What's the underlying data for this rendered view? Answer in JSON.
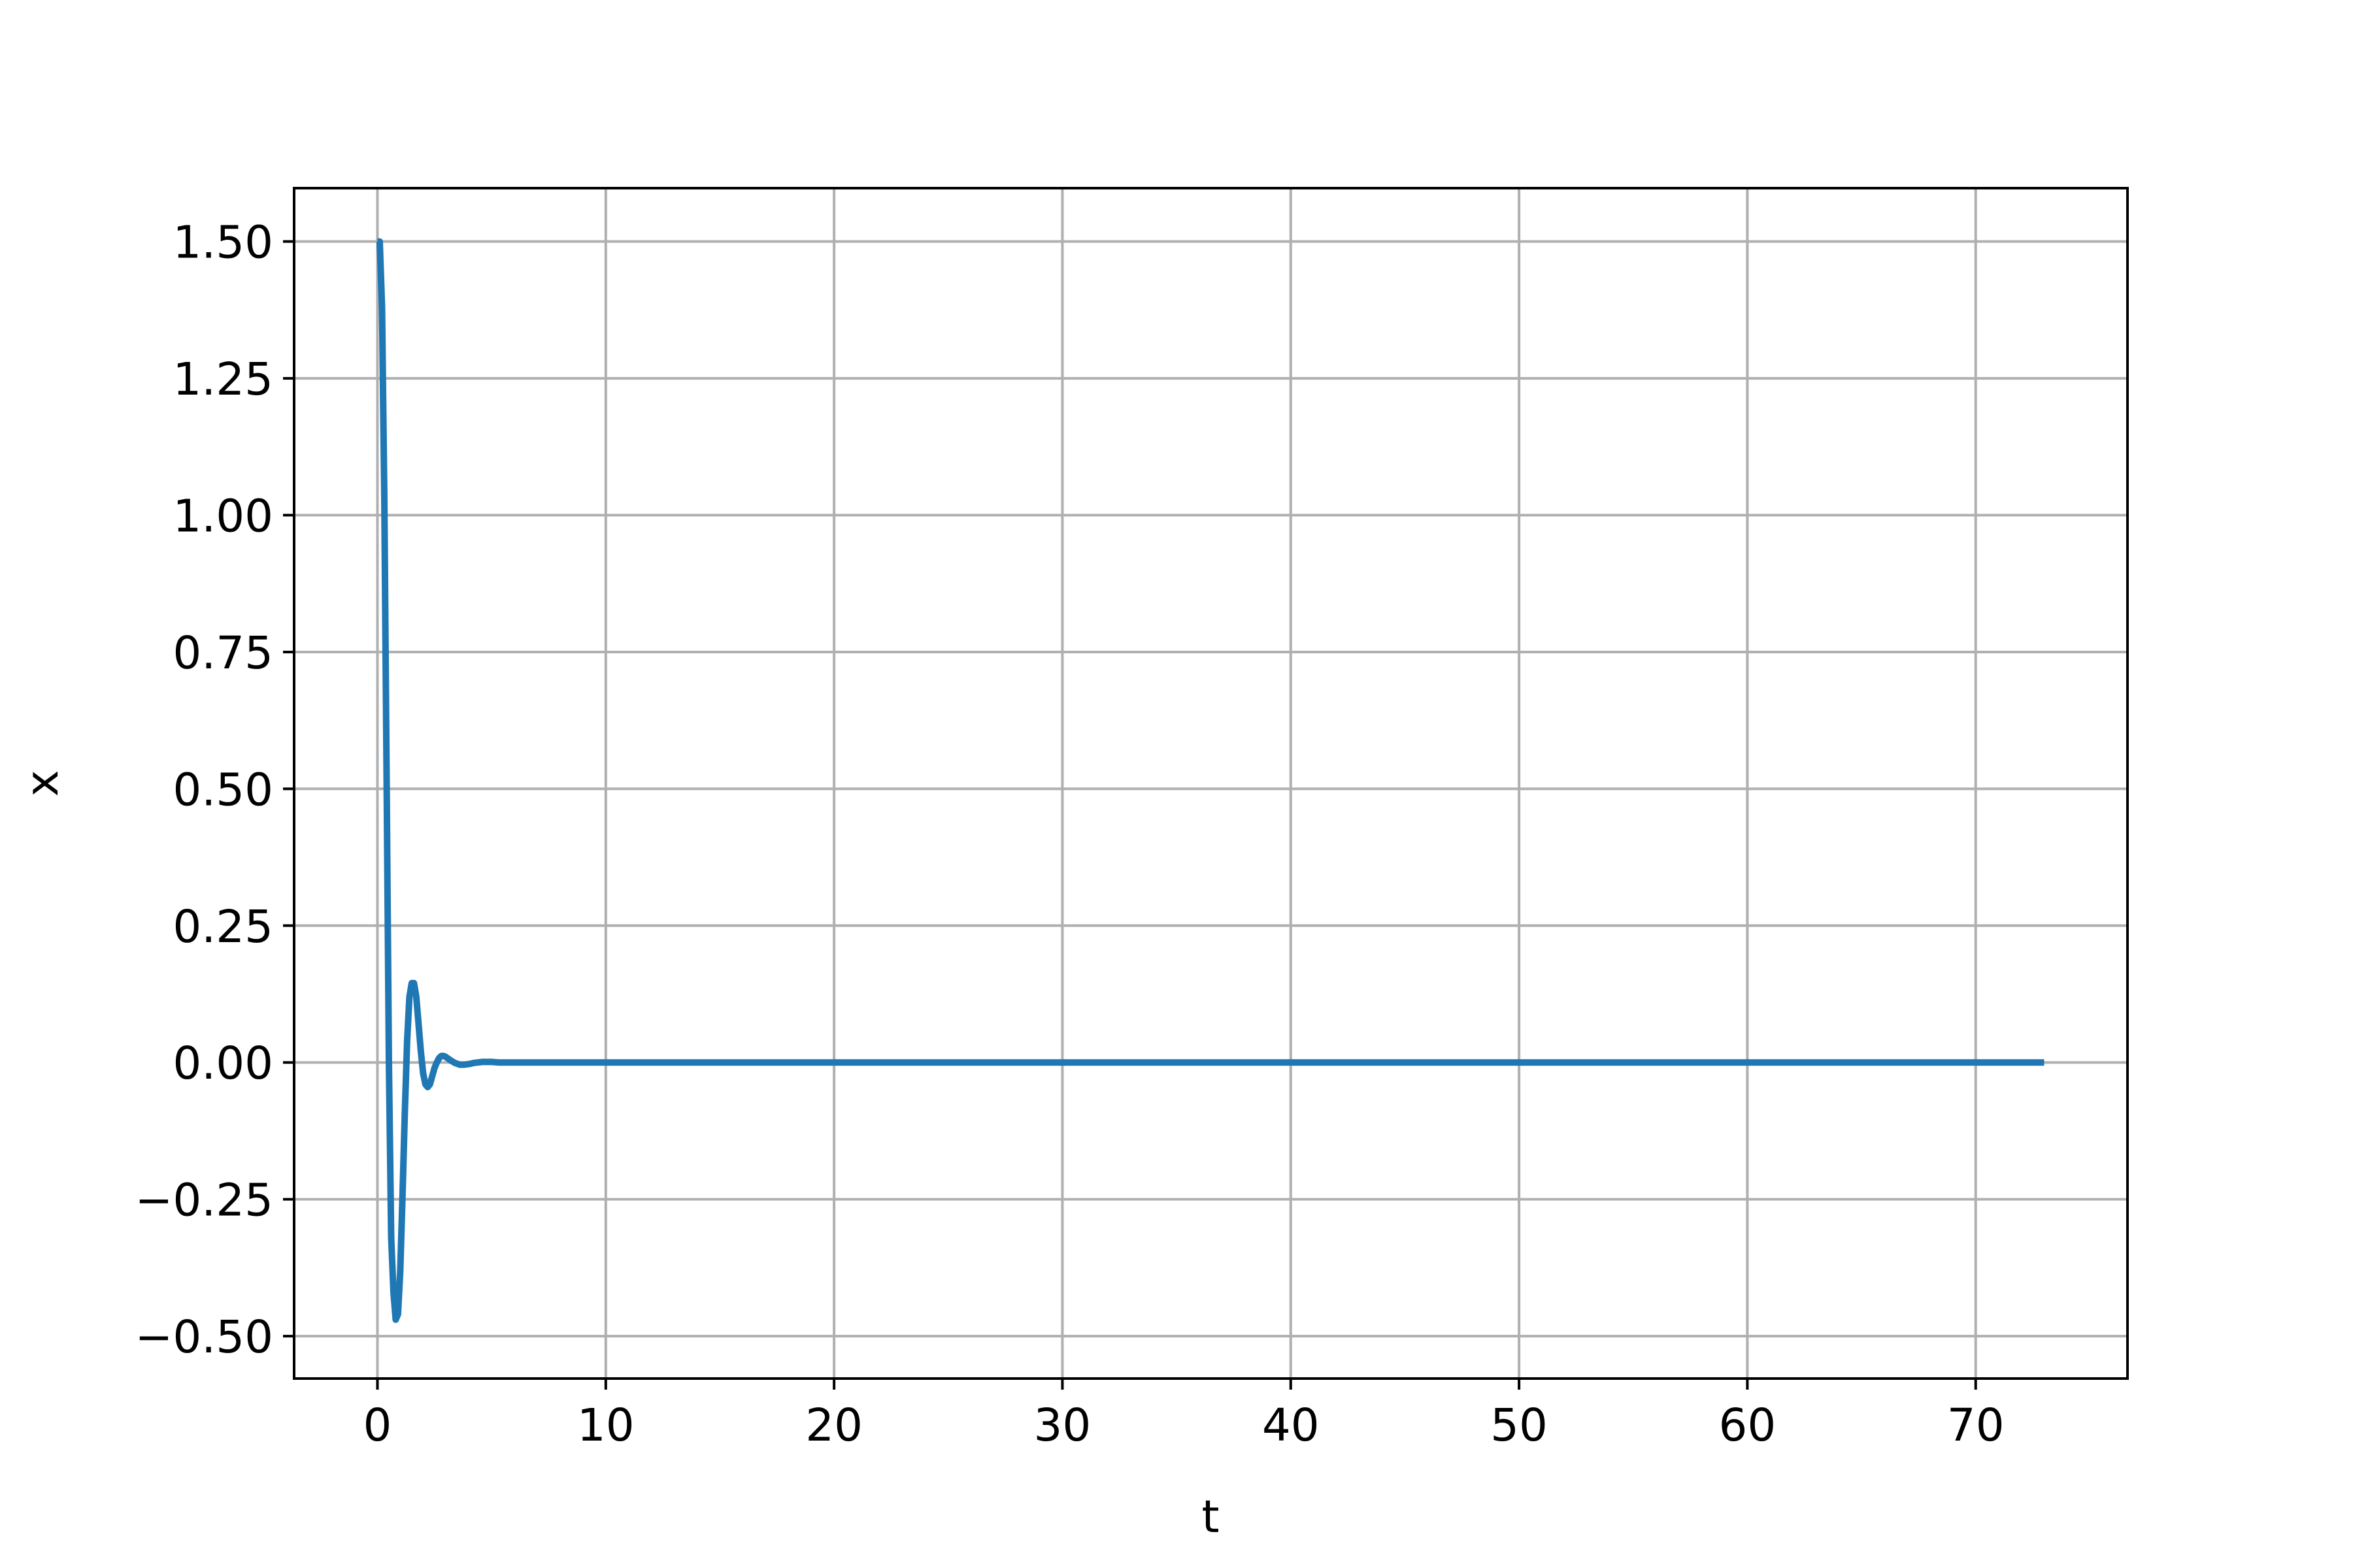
{
  "chart_data": {
    "type": "line",
    "title": "",
    "xlabel": "t",
    "ylabel": "x",
    "xlim": [
      -3.65,
      76.65
    ],
    "ylim": [
      -0.5775,
      1.5975
    ],
    "xticks": [
      0,
      10,
      20,
      30,
      40,
      50,
      60,
      70
    ],
    "xtick_labels": [
      "0",
      "10",
      "20",
      "30",
      "40",
      "50",
      "60",
      "70"
    ],
    "yticks": [
      -0.5,
      -0.25,
      0.0,
      0.25,
      0.5,
      0.75,
      1.0,
      1.25,
      1.5
    ],
    "ytick_labels": [
      "−0.50",
      "−0.25",
      "0.00",
      "0.25",
      "0.50",
      "0.75",
      "1.00",
      "1.25",
      "1.50"
    ],
    "grid": true,
    "legend": "none",
    "series": [
      {
        "color": "#1f77b4",
        "x": [
          0,
          0.1,
          0.2,
          0.3,
          0.4,
          0.5,
          0.6,
          0.7,
          0.8,
          0.9,
          1.0,
          1.1,
          1.2,
          1.3,
          1.4,
          1.5,
          1.6,
          1.7,
          1.8,
          1.9,
          2.0,
          2.1,
          2.2,
          2.3,
          2.4,
          2.5,
          2.6,
          2.7,
          2.8,
          2.9,
          3.0,
          3.2,
          3.4,
          3.6,
          3.8,
          4.0,
          4.2,
          4.4,
          4.6,
          4.8,
          5.0,
          5.3,
          5.6,
          5.9,
          6.2,
          6.5,
          7.0,
          8.0,
          10.0,
          20.0,
          30.0,
          40.0,
          50.0,
          60.0,
          70.0,
          73.0
        ],
        "values": [
          1.5,
          1.5,
          1.38,
          1.03,
          0.52,
          0.0,
          -0.32,
          -0.42,
          -0.47,
          -0.46,
          -0.38,
          -0.24,
          -0.09,
          0.04,
          0.12,
          0.145,
          0.145,
          0.12,
          0.07,
          0.02,
          -0.02,
          -0.04,
          -0.045,
          -0.04,
          -0.025,
          -0.01,
          0.0,
          0.008,
          0.012,
          0.012,
          0.01,
          0.004,
          -0.001,
          -0.004,
          -0.004,
          -0.003,
          -0.001,
          0.0,
          0.001,
          0.001,
          0.001,
          0.0,
          0.0,
          0.0,
          0.0,
          0.0,
          0.0,
          0.0,
          0.0,
          0.0,
          0.0,
          0.0,
          0.0,
          0.0,
          0.0,
          0.0
        ]
      }
    ]
  }
}
